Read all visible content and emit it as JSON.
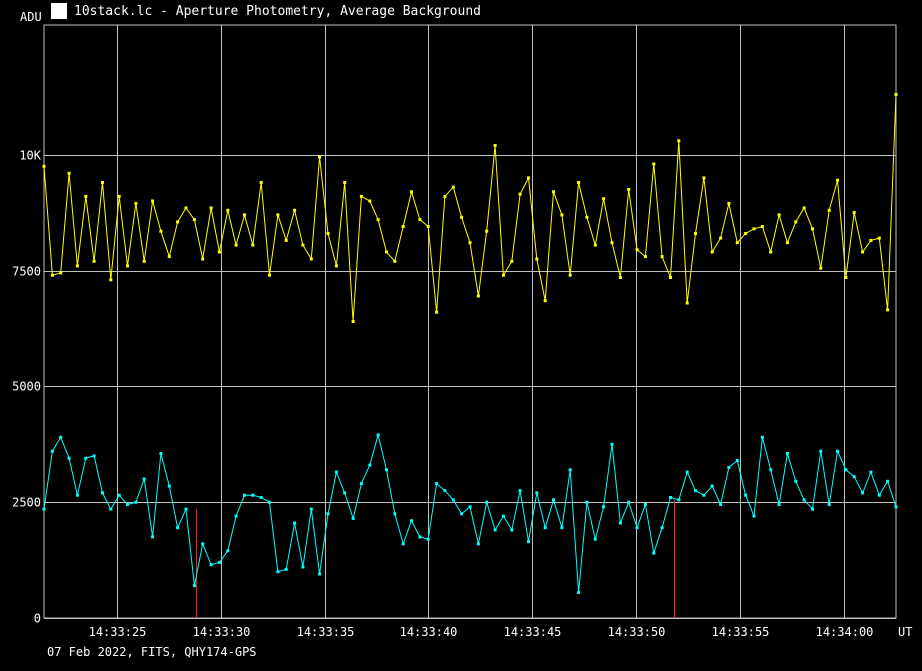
{
  "window": {
    "title": "10stack.lc - Aperture Photometry, Average Background",
    "icon": "lightcurve-app-icon"
  },
  "footer": {
    "text": "07 Feb 2022, FITS, QHY174-GPS"
  },
  "colors": {
    "background": "#000000",
    "grid": "#c0c0c0",
    "series_1": "#ffff00",
    "series_2": "#00ffff",
    "marker": "#ff2020"
  },
  "chart_data": {
    "type": "line",
    "ylabel": "ADU",
    "xlabel": "UT",
    "ylim": [
      0,
      12800
    ],
    "yticks": [
      0,
      2500,
      5000,
      7500,
      10000
    ],
    "ytick_labels": [
      "0",
      "2500",
      "5000",
      "7500",
      "10K"
    ],
    "xlim": [
      "14:33:21.5",
      "14:34:02.5"
    ],
    "xticks": [
      "14:33:25",
      "14:33:30",
      "14:33:35",
      "14:33:40",
      "14:33:45",
      "14:33:50",
      "14:33:55",
      "14:34:00"
    ],
    "grid": true,
    "markers": [
      {
        "t": "14:33:28.8",
        "value": 2350
      },
      {
        "t": "14:33:51.8",
        "value": 2550
      }
    ],
    "series": [
      {
        "values": [
          9750,
          7400,
          7450,
          9600,
          7600,
          9100,
          7700,
          9400,
          7300,
          9100,
          7600,
          8950,
          7700,
          9000,
          8350,
          7800,
          8550,
          8850,
          8600,
          7750,
          8850,
          7900,
          8800,
          8050,
          8700,
          8050,
          9400,
          7400,
          8700,
          8150,
          8800,
          8050,
          7750,
          9950,
          8300,
          7600,
          9400,
          6400,
          9100,
          9000,
          8600,
          7900,
          7700,
          8450,
          9200,
          8600,
          8450,
          6600,
          9100,
          9300,
          8650,
          8100,
          6950,
          8350,
          10200,
          7400,
          7700,
          9150,
          9500,
          7750,
          6850,
          9200,
          8700,
          7400,
          9400,
          8650,
          8050,
          9050,
          8100,
          7350,
          9250,
          7950,
          7800,
          9800,
          7800,
          7350,
          10300,
          6800,
          8300,
          9500,
          7900,
          8200,
          8950,
          8100,
          8300,
          8400,
          8450,
          7900,
          8700,
          8100,
          8550,
          8850,
          8400,
          7550,
          8800,
          9450,
          7350,
          8750,
          7900,
          8150,
          8200,
          6650,
          11300
        ]
      },
      {
        "values": [
          2350,
          3600,
          3900,
          3450,
          2650,
          3450,
          3500,
          2700,
          2350,
          2650,
          2450,
          2500,
          3000,
          1750,
          3550,
          2850,
          1950,
          2350,
          700,
          1600,
          1150,
          1200,
          1450,
          2200,
          2650,
          2650,
          2600,
          2500,
          1000,
          1050,
          2050,
          1100,
          2350,
          950,
          2250,
          3150,
          2700,
          2150,
          2900,
          3300,
          3950,
          3200,
          2250,
          1600,
          2100,
          1750,
          1700,
          2900,
          2750,
          2550,
          2250,
          2400,
          1600,
          2500,
          1900,
          2200,
          1900,
          2750,
          1650,
          2700,
          1950,
          2550,
          1950,
          3200,
          550,
          2500,
          1700,
          2400,
          3750,
          2050,
          2500,
          1950,
          2450,
          1400,
          1950,
          2600,
          2550,
          3150,
          2750,
          2650,
          2850,
          2450,
          3250,
          3400,
          2650,
          2200,
          3900,
          3200,
          2450,
          3550,
          2950,
          2550,
          2350,
          3600,
          2450,
          3600,
          3200,
          3050,
          2700,
          3150,
          2650,
          2950,
          2400
        ]
      }
    ]
  }
}
